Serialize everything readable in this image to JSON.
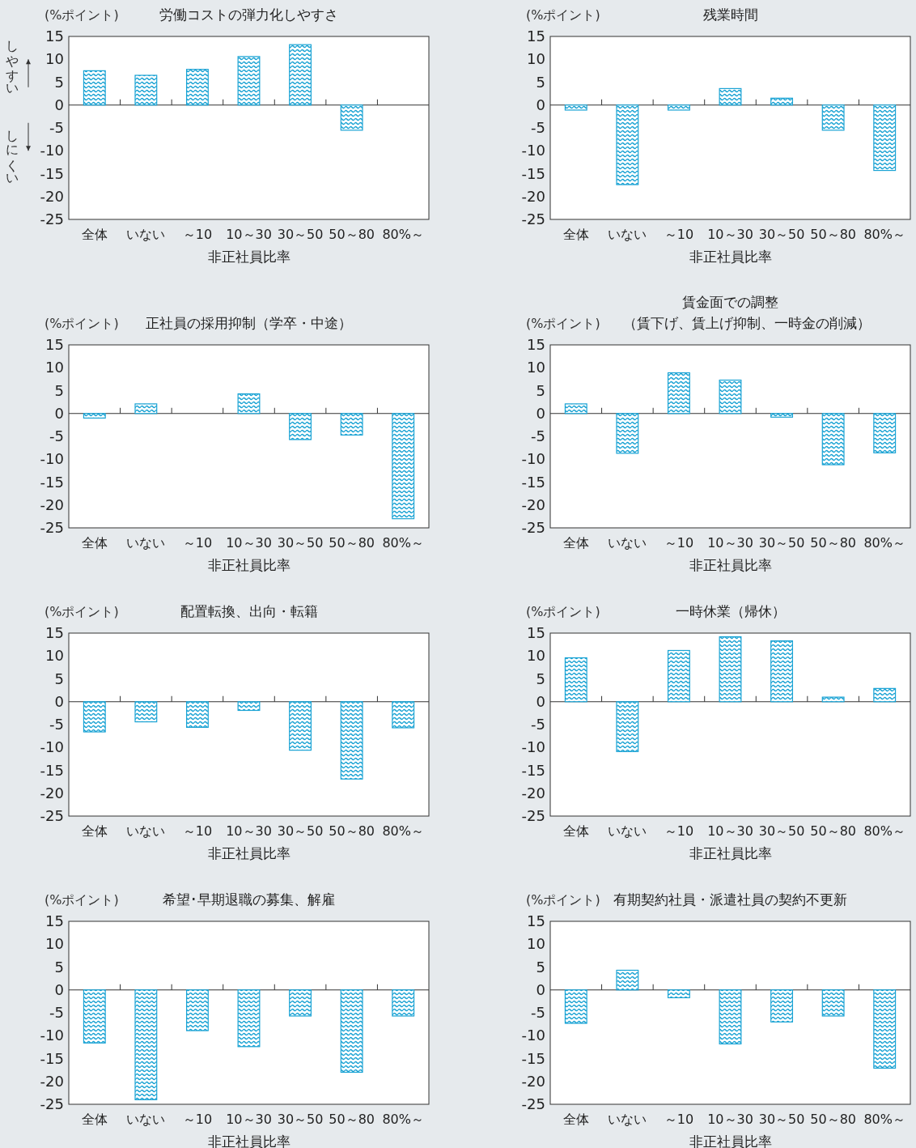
{
  "chart_data": [
    {
      "type": "bar",
      "title": "労働コストの弾力化しやすさ",
      "ylabel": "(%ポイント)",
      "xlabel": "非正社員比率",
      "categories": [
        "全体",
        "いない",
        "～10",
        "10～30",
        "30～50",
        "50～80",
        "80%～"
      ],
      "values": [
        7.5,
        6.5,
        7.8,
        10.6,
        13.2,
        -5.5,
        null
      ],
      "color": "#1aa3d4",
      "ylim": [
        -25,
        15
      ],
      "yticks": [
        -25,
        -20,
        -15,
        -10,
        -5,
        0,
        5,
        10,
        15
      ],
      "annotations": [
        "しやすい",
        "しにくい"
      ]
    },
    {
      "type": "bar",
      "title": "残業時間",
      "ylabel": "(%ポイント)",
      "xlabel": "非正社員比率",
      "categories": [
        "全体",
        "いない",
        "～10",
        "10～30",
        "30～50",
        "50～80",
        "80%～"
      ],
      "values": [
        -1.1,
        -17.4,
        -1.1,
        3.6,
        1.5,
        -5.5,
        -14.3
      ],
      "color": "#1aa3d4",
      "ylim": [
        -25,
        15
      ],
      "yticks": [
        -25,
        -20,
        -15,
        -10,
        -5,
        0,
        5,
        10,
        15
      ]
    },
    {
      "type": "bar",
      "title": "正社員の採用抑制（学卒・中途）",
      "ylabel": "(%ポイント)",
      "xlabel": "非正社員比率",
      "categories": [
        "全体",
        "いない",
        "～10",
        "10～30",
        "30～50",
        "50～80",
        "80%～"
      ],
      "values": [
        -1.0,
        2.1,
        null,
        4.3,
        -5.7,
        -4.7,
        -23.0
      ],
      "color": "#1aa3d4",
      "ylim": [
        -25,
        15
      ],
      "yticks": [
        -25,
        -20,
        -15,
        -10,
        -5,
        0,
        5,
        10,
        15
      ]
    },
    {
      "type": "bar",
      "title": "賃金面での調整",
      "subtitle": "（賃下げ、賃上げ抑制、一時金の削減）",
      "ylabel": "(%ポイント)",
      "xlabel": "非正社員比率",
      "categories": [
        "全体",
        "いない",
        "～10",
        "10～30",
        "30～50",
        "50～80",
        "80%～"
      ],
      "values": [
        2.1,
        -8.7,
        8.9,
        7.3,
        -0.8,
        -11.2,
        -8.6
      ],
      "color": "#1aa3d4",
      "ylim": [
        -25,
        15
      ],
      "yticks": [
        -25,
        -20,
        -15,
        -10,
        -5,
        0,
        5,
        10,
        15
      ]
    },
    {
      "type": "bar",
      "title": "配置転換、出向・転籍",
      "ylabel": "(%ポイント)",
      "xlabel": "非正社員比率",
      "categories": [
        "全体",
        "いない",
        "～10",
        "10～30",
        "30～50",
        "50～80",
        "80%～"
      ],
      "values": [
        -6.6,
        -4.4,
        -5.6,
        -1.9,
        -10.6,
        -16.9,
        -5.7
      ],
      "color": "#1aa3d4",
      "ylim": [
        -25,
        15
      ],
      "yticks": [
        -25,
        -20,
        -15,
        -10,
        -5,
        0,
        5,
        10,
        15
      ]
    },
    {
      "type": "bar",
      "title": "一時休業（帰休）",
      "ylabel": "(%ポイント)",
      "xlabel": "非正社員比率",
      "categories": [
        "全体",
        "いない",
        "～10",
        "10～30",
        "30～50",
        "50～80",
        "80%～"
      ],
      "values": [
        9.6,
        -10.9,
        11.2,
        14.2,
        13.3,
        1.0,
        2.9
      ],
      "color": "#1aa3d4",
      "ylim": [
        -25,
        15
      ],
      "yticks": [
        -25,
        -20,
        -15,
        -10,
        -5,
        0,
        5,
        10,
        15
      ]
    },
    {
      "type": "bar",
      "title": "希望･早期退職の募集、解雇",
      "ylabel": "(%ポイント)",
      "xlabel": "非正社員比率",
      "categories": [
        "全体",
        "いない",
        "～10",
        "10～30",
        "30～50",
        "50～80",
        "80%～"
      ],
      "values": [
        -11.6,
        -24.0,
        -8.9,
        -12.4,
        -5.7,
        -18.0,
        -5.7
      ],
      "color": "#1aa3d4",
      "ylim": [
        -25,
        15
      ],
      "yticks": [
        -25,
        -20,
        -15,
        -10,
        -5,
        0,
        5,
        10,
        15
      ]
    },
    {
      "type": "bar",
      "title": "有期契約社員・派遣社員の契約不更新",
      "ylabel": "(%ポイント)",
      "xlabel": "非正社員比率",
      "categories": [
        "全体",
        "いない",
        "～10",
        "10～30",
        "30～50",
        "50～80",
        "80%～"
      ],
      "values": [
        -7.3,
        4.3,
        -1.7,
        -11.8,
        -7.0,
        -5.7,
        -17.1
      ],
      "color": "#1aa3d4",
      "ylim": [
        -25,
        15
      ],
      "yticks": [
        -25,
        -20,
        -15,
        -10,
        -5,
        0,
        5,
        10,
        15
      ]
    }
  ]
}
